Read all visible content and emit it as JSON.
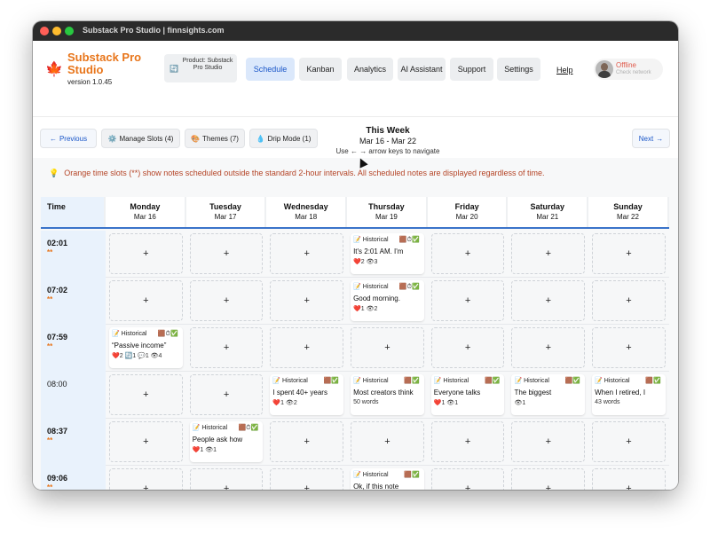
{
  "window": {
    "title": "Substack Pro Studio | finnsights.com"
  },
  "header": {
    "app_name": "Substack Pro Studio",
    "version": "version 1.0.45",
    "product_label": "Product: Substack Pro Studio",
    "nav": [
      "Schedule",
      "Kanban",
      "Analytics",
      "AI Assistant",
      "Support",
      "Settings"
    ],
    "help": "Help",
    "status": "Offline",
    "status_sub": "Check network"
  },
  "toolbar": {
    "previous": "Previous",
    "manage_slots": "Manage Slots (4)",
    "themes": "Themes (7)",
    "drip_mode": "Drip Mode (1)",
    "next": "Next",
    "week_label": "This Week",
    "week_range": "Mar 16 - Mar 22",
    "hint": "Use ← → arrow keys to navigate"
  },
  "notice": "Orange time slots (**) show notes scheduled outside the standard 2-hour intervals. All scheduled notes are displayed regardless of time.",
  "calendar": {
    "time_header": "Time",
    "days": [
      {
        "day": "Monday",
        "date": "Mar 16"
      },
      {
        "day": "Tuesday",
        "date": "Mar 17"
      },
      {
        "day": "Wednesday",
        "date": "Mar 18"
      },
      {
        "day": "Thursday",
        "date": "Mar 19"
      },
      {
        "day": "Friday",
        "date": "Mar 20"
      },
      {
        "day": "Saturday",
        "date": "Mar 21"
      },
      {
        "day": "Sunday",
        "date": "Mar 22"
      }
    ],
    "empty_slot": "+",
    "off_interval_marker": "**",
    "rows": [
      {
        "time": "02:01",
        "off": true,
        "cells": [
          null,
          null,
          null,
          {
            "tag": "Historical",
            "icons": "🟫⏱✅",
            "text": "It's 2:01 AM. I'm",
            "stats": "❤️2 👁3"
          },
          null,
          null,
          null
        ]
      },
      {
        "time": "07:02",
        "off": true,
        "cells": [
          null,
          null,
          null,
          {
            "tag": "Historical",
            "icons": "🟫⏱✅",
            "text": "Good morning.",
            "stats": "❤️1 👁2"
          },
          null,
          null,
          null
        ]
      },
      {
        "time": "07:59",
        "off": true,
        "cells": [
          {
            "tag": "Historical",
            "icons": "🟫⏱✅",
            "text": "“Passive income”",
            "stats": "❤️2 🔄1 💬1 👁4"
          },
          null,
          null,
          null,
          null,
          null,
          null
        ]
      },
      {
        "time": "08:00",
        "off": false,
        "cells": [
          null,
          null,
          {
            "tag": "Historical",
            "icons": "🟫✅",
            "text": "I spent 40+ years",
            "stats": "❤️1 👁2"
          },
          {
            "tag": "Historical",
            "icons": "🟫✅",
            "text": "Most creators think",
            "stats": "50 words"
          },
          {
            "tag": "Historical",
            "icons": "🟫✅",
            "text": "Everyone talks",
            "stats": "❤️1 👁1"
          },
          {
            "tag": "Historical",
            "icons": "🟫✅",
            "text": "The biggest",
            "stats": "👁1"
          },
          {
            "tag": "Historical",
            "icons": "🟫✅",
            "text": "When I retired, I",
            "stats": "43 words"
          }
        ]
      },
      {
        "time": "08:37",
        "off": true,
        "cells": [
          null,
          {
            "tag": "Historical",
            "icons": "🟫⏱✅",
            "text": "People ask how",
            "stats": "❤️1 👁1"
          },
          null,
          null,
          null,
          null,
          null
        ]
      },
      {
        "time": "09:06",
        "off": true,
        "cells": [
          null,
          null,
          null,
          {
            "tag": "Historical",
            "icons": "🟫✅",
            "text": "Ok, if this note",
            "stats": ""
          },
          null,
          null,
          null
        ]
      }
    ]
  }
}
